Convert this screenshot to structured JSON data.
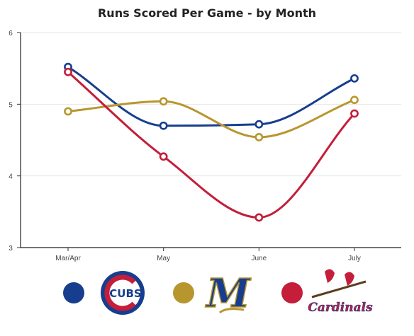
{
  "chart_data": {
    "type": "line",
    "title": "Runs Scored Per Game - by Month",
    "categories": [
      "Mar/Apr",
      "May",
      "June",
      "July"
    ],
    "ylim": [
      3,
      6
    ],
    "yticks": [
      "3",
      "4",
      "5",
      "6"
    ],
    "grid": true,
    "smooth": true,
    "series": [
      {
        "key": "cubs",
        "values": [
          5.52,
          4.7,
          4.72,
          5.36
        ],
        "color": "#173E8E"
      },
      {
        "key": "brewers",
        "values": [
          4.9,
          5.04,
          4.54,
          5.06
        ],
        "color": "#B8962E"
      },
      {
        "key": "cardinals",
        "values": [
          5.45,
          4.27,
          3.42,
          4.87
        ],
        "color": "#C41E3A"
      }
    ]
  },
  "legend": {
    "placement": "bottom",
    "teams": [
      {
        "key": "cubs",
        "color": "#173E8E",
        "logo": "cubs-logo",
        "logo_text": "CUBS"
      },
      {
        "key": "brewers",
        "color": "#B8962E",
        "logo": "brewers-logo",
        "logo_text": "M"
      },
      {
        "key": "cardinals",
        "color": "#C41E3A",
        "logo": "cardinals-logo",
        "logo_text": "Cardinals"
      }
    ]
  }
}
